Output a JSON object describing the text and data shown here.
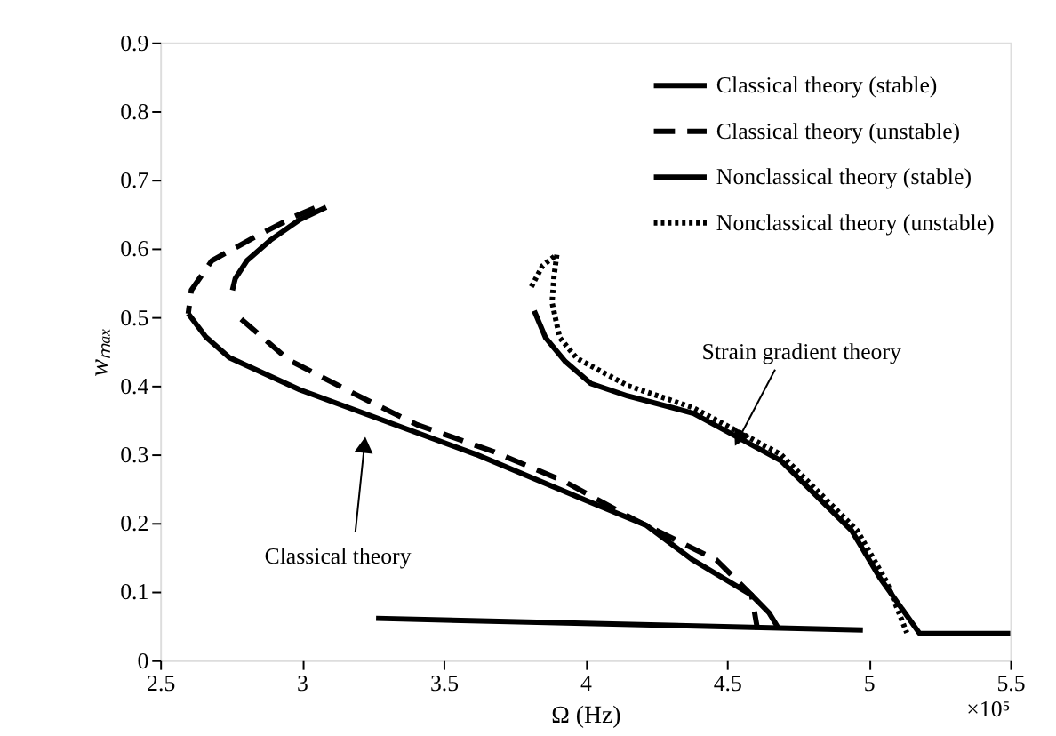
{
  "chart_data": {
    "type": "line",
    "xlabel": "Ω (Hz)",
    "ylabel": "wₘₐₓ",
    "xlim": [
      2.5,
      5.5
    ],
    "xticks": [
      2.5,
      3,
      3.5,
      4,
      4.5,
      5,
      5.5
    ],
    "ylim": [
      0,
      0.9
    ],
    "yticks": [
      0,
      0.1,
      0.2,
      0.3,
      0.4,
      0.5,
      0.6,
      0.7,
      0.8,
      0.9
    ],
    "grid": false,
    "legend": "top right",
    "marker": "none",
    "series": [
      {
        "name": "Classical theory (stable)",
        "color": "#000000",
        "line_style": "solid",
        "x": [
          2.599,
          2.661,
          2.744,
          2.993,
          3.303,
          3.614,
          4.007,
          4.214,
          4.38,
          4.587,
          4.649,
          4.68
        ],
        "values": [
          0.505,
          0.471,
          0.441,
          0.394,
          0.347,
          0.3,
          0.232,
          0.197,
          0.146,
          0.095,
          0.069,
          0.048
        ]
      },
      {
        "name": "Classical theory (unstable)",
        "color": "#000000",
        "line_style": "dashed",
        "x": [
          2.786,
          2.952,
          3.2,
          3.407,
          3.676,
          3.924,
          4.173,
          4.463,
          4.587,
          4.608
        ],
        "values": [
          0.497,
          0.438,
          0.385,
          0.343,
          0.304,
          0.261,
          0.205,
          0.146,
          0.095,
          0.045
        ]
      },
      {
        "name": "Nonclassical theory (stable)",
        "color": "#000000",
        "line_style": "solid",
        "x": [
          3.82,
          3.86,
          3.93,
          4.02,
          4.15,
          4.38,
          4.69,
          4.94,
          5.04,
          5.18,
          5.5
        ],
        "values": [
          0.509,
          0.47,
          0.435,
          0.403,
          0.385,
          0.36,
          0.291,
          0.189,
          0.12,
          0.039,
          0.039
        ]
      },
      {
        "name": "Nonclassical theory (unstable)",
        "color": "#000000",
        "line_style": "dotted",
        "x": [
          3.81,
          3.85,
          3.9,
          3.89,
          3.883,
          3.91,
          3.97,
          4.15,
          4.38,
          4.69,
          4.96,
          5.063,
          5.135
        ],
        "values": [
          0.544,
          0.575,
          0.591,
          0.56,
          0.521,
          0.47,
          0.44,
          0.4,
          0.368,
          0.3,
          0.189,
          0.115,
          0.04
        ]
      },
      {
        "color": "#000000",
        "line_style": "solid",
        "x": [
          3.086,
          2.993,
          2.889,
          2.806,
          2.765,
          2.755
        ],
        "values": [
          0.66,
          0.642,
          0.612,
          0.582,
          0.556,
          0.539
        ]
      },
      {
        "color": "#000000",
        "line_style": "dashed",
        "x": [
          3.045,
          2.972,
          2.827,
          2.682,
          2.61,
          2.599
        ],
        "values": [
          0.659,
          0.646,
          0.615,
          0.582,
          0.539,
          0.505
        ]
      },
      {
        "color": "#000000",
        "line_style": "solid",
        "x": [
          3.262,
          4.98
        ],
        "values": [
          0.061,
          0.044
        ]
      }
    ],
    "annotations": [
      {
        "text": "Classical theory",
        "x": 3.22,
        "y": 0.31
      },
      {
        "text": "Strain gradient theory",
        "x": 4.546,
        "y": 0.326
      },
      "×10⁵"
    ]
  }
}
